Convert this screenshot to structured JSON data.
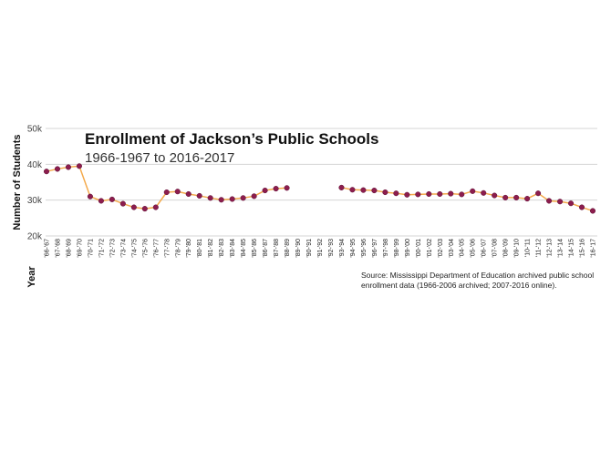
{
  "chart_data": {
    "type": "line",
    "title": "Enrollment of Jackson’s Public Schools",
    "subtitle": "1966-1967 to 2016-2017",
    "xlabel": "Year",
    "ylabel": "Number of Students",
    "ylim": [
      20000,
      50000
    ],
    "yticks": [
      20000,
      30000,
      40000,
      50000
    ],
    "ytick_labels": [
      "20k",
      "30k",
      "40k",
      "50k"
    ],
    "grid": true,
    "line_color": "#f4a94a",
    "marker_color": "#8c1d4e",
    "categories": [
      "'66-'67",
      "'67-'68",
      "'68-'69",
      "'69-'70",
      "'70-'71",
      "'71-'72",
      "'72-'73",
      "'73-'74",
      "'74-'75",
      "'75-'76",
      "'76-'77",
      "'77-'78",
      "'78-'79",
      "'79-'80",
      "'80-'81",
      "'81-'82",
      "'82-'83",
      "'83-'84",
      "'84-'85",
      "'85-'86",
      "'86-'87",
      "'87-'88",
      "'88-'89",
      "'89-'90",
      "'90-'91",
      "'91-'92",
      "'92-'93",
      "'93-'94",
      "'94-'95",
      "'95-'96",
      "'96-'97",
      "'97-'98",
      "'98-'99",
      "'99-'00",
      "'00-'01",
      "'01-'02",
      "'02-'03",
      "'03-'04",
      "'04-'05",
      "'05-'06",
      "'06-'07",
      "'07-'08",
      "'08-'09",
      "'09-'10",
      "'10-'11",
      "'11-'12",
      "'12-'13",
      "'13-'14",
      "'14-'15",
      "'15-'16",
      "'16-'17"
    ],
    "values": [
      38000,
      38700,
      39200,
      39500,
      31000,
      29800,
      30200,
      29000,
      28000,
      27600,
      28000,
      32200,
      32400,
      31700,
      31200,
      30600,
      30100,
      30300,
      30600,
      31100,
      32700,
      33200,
      33400,
      null,
      null,
      null,
      null,
      33500,
      32900,
      32800,
      32700,
      32200,
      31900,
      31500,
      31600,
      31700,
      31700,
      31800,
      31600,
      32500,
      32000,
      31300,
      30700,
      30700,
      30400,
      31900,
      29800,
      29600,
      29100,
      28000,
      27000
    ]
  },
  "source": {
    "line1": "Source: Mississippi Department of Education archived public school",
    "line2": "enrollment data (1966-2006 archived; 2007-2016 online)."
  }
}
